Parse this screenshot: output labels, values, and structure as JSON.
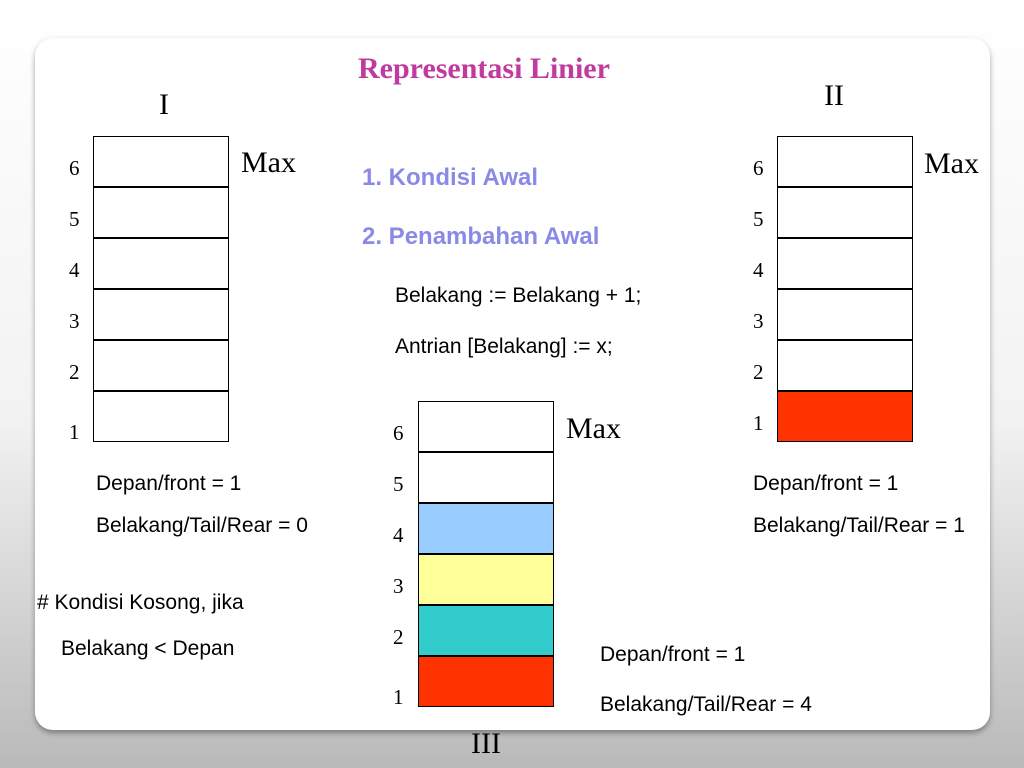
{
  "title": "Representasi Linier",
  "steps": [
    "1. Kondisi Awal",
    "2. Penambahan Awal"
  ],
  "code": [
    "Belakang := Belakang + 1;",
    "Antrian [Belakang] := x;"
  ],
  "max_label": "Max",
  "indices": [
    "6",
    "5",
    "4",
    "3",
    "2",
    "1"
  ],
  "colors": {
    "title": "#c03a9f",
    "step": "#8a8ae6",
    "empty": "#ffffff",
    "red": "#ff3300",
    "teal": "#33cccc",
    "yellow": "#ffff99",
    "blue": "#99ccff"
  },
  "queues": [
    {
      "label": "I",
      "cells_bottom_to_top": [
        "#ffffff",
        "#ffffff",
        "#ffffff",
        "#ffffff",
        "#ffffff",
        "#ffffff"
      ],
      "front": "Depan/front = 1",
      "rear": "Belakang/Tail/Rear = 0"
    },
    {
      "label": "II",
      "cells_bottom_to_top": [
        "#ff3300",
        "#ffffff",
        "#ffffff",
        "#ffffff",
        "#ffffff",
        "#ffffff"
      ],
      "front": "Depan/front = 1",
      "rear": "Belakang/Tail/Rear = 1"
    },
    {
      "label": "III",
      "cells_bottom_to_top": [
        "#ff3300",
        "#33cccc",
        "#ffff99",
        "#99ccff",
        "#ffffff",
        "#ffffff"
      ],
      "front": "Depan/front = 1",
      "rear": "Belakang/Tail/Rear = 4"
    }
  ],
  "note": [
    "# Kondisi Kosong, jika",
    "Belakang < Depan"
  ]
}
